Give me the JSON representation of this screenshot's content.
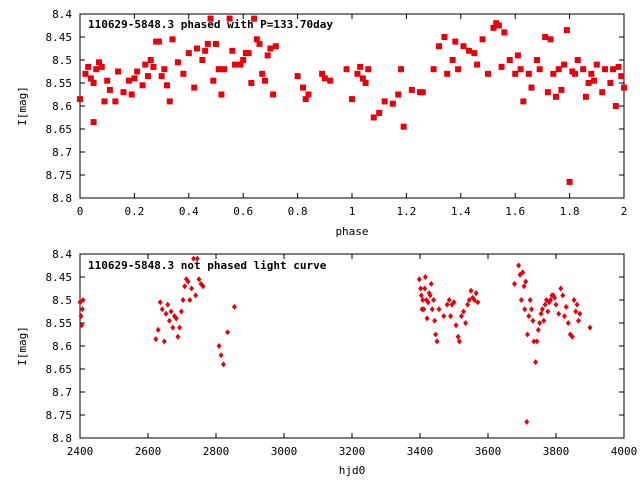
{
  "chart_data": [
    {
      "type": "scatter",
      "title": "110629-5848.3 phased with P=133.70day",
      "xlabel": "phase",
      "ylabel": "I[mag]",
      "xlim": [
        0,
        2
      ],
      "ylim": [
        8.8,
        8.4
      ],
      "y_inverted": true,
      "grid": false,
      "x_ticks": [
        "0",
        "0.2",
        "0.4",
        "0.6",
        "0.8",
        "1",
        "1.2",
        "1.4",
        "1.6",
        "1.8",
        "2"
      ],
      "x_tick_values": [
        0,
        0.2,
        0.4,
        0.6,
        0.8,
        1.0,
        1.2,
        1.4,
        1.6,
        1.8,
        2.0
      ],
      "y_ticks": [
        "8.4",
        "8.45",
        "8.5",
        "8.55",
        "8.6",
        "8.65",
        "8.7",
        "8.75",
        "8.8"
      ],
      "y_tick_values": [
        8.4,
        8.45,
        8.5,
        8.55,
        8.6,
        8.65,
        8.7,
        8.75,
        8.8
      ],
      "marker_color": "#e8000b",
      "marker": "square",
      "points": [
        [
          0.0,
          8.585
        ],
        [
          0.02,
          8.53
        ],
        [
          0.03,
          8.515
        ],
        [
          0.04,
          8.54
        ],
        [
          0.05,
          8.55
        ],
        [
          0.06,
          8.52
        ],
        [
          0.07,
          8.505
        ],
        [
          0.08,
          8.515
        ],
        [
          0.05,
          8.635
        ],
        [
          0.09,
          8.59
        ],
        [
          0.1,
          8.545
        ],
        [
          0.11,
          8.565
        ],
        [
          0.13,
          8.59
        ],
        [
          0.14,
          8.525
        ],
        [
          0.16,
          8.57
        ],
        [
          0.18,
          8.545
        ],
        [
          0.19,
          8.575
        ],
        [
          0.2,
          8.54
        ],
        [
          0.21,
          8.525
        ],
        [
          0.23,
          8.555
        ],
        [
          0.24,
          8.51
        ],
        [
          0.25,
          8.535
        ],
        [
          0.26,
          8.5
        ],
        [
          0.27,
          8.515
        ],
        [
          0.28,
          8.46
        ],
        [
          0.29,
          8.46
        ],
        [
          0.3,
          8.535
        ],
        [
          0.31,
          8.52
        ],
        [
          0.32,
          8.555
        ],
        [
          0.33,
          8.59
        ],
        [
          0.34,
          8.455
        ],
        [
          0.36,
          8.505
        ],
        [
          0.38,
          8.53
        ],
        [
          0.4,
          8.485
        ],
        [
          0.42,
          8.56
        ],
        [
          0.43,
          8.475
        ],
        [
          0.45,
          8.5
        ],
        [
          0.46,
          8.48
        ],
        [
          0.47,
          8.465
        ],
        [
          0.48,
          8.41
        ],
        [
          0.49,
          8.545
        ],
        [
          0.5,
          8.465
        ],
        [
          0.51,
          8.52
        ],
        [
          0.52,
          8.575
        ],
        [
          0.53,
          8.52
        ],
        [
          0.55,
          8.41
        ],
        [
          0.56,
          8.48
        ],
        [
          0.57,
          8.51
        ],
        [
          0.59,
          8.51
        ],
        [
          0.6,
          8.5
        ],
        [
          0.61,
          8.485
        ],
        [
          0.62,
          8.485
        ],
        [
          0.63,
          8.55
        ],
        [
          0.64,
          8.41
        ],
        [
          0.65,
          8.455
        ],
        [
          0.66,
          8.465
        ],
        [
          0.67,
          8.53
        ],
        [
          0.68,
          8.545
        ],
        [
          0.69,
          8.49
        ],
        [
          0.7,
          8.475
        ],
        [
          0.71,
          8.575
        ],
        [
          0.72,
          8.47
        ],
        [
          0.8,
          8.535
        ],
        [
          0.82,
          8.56
        ],
        [
          0.83,
          8.585
        ],
        [
          0.84,
          8.575
        ],
        [
          0.89,
          8.53
        ],
        [
          0.9,
          8.54
        ],
        [
          0.92,
          8.545
        ],
        [
          0.98,
          8.52
        ],
        [
          1.0,
          8.585
        ],
        [
          1.02,
          8.53
        ],
        [
          1.03,
          8.515
        ],
        [
          1.04,
          8.54
        ],
        [
          1.05,
          8.55
        ],
        [
          1.06,
          8.52
        ],
        [
          1.08,
          8.625
        ],
        [
          1.1,
          8.615
        ],
        [
          1.12,
          8.59
        ],
        [
          1.15,
          8.595
        ],
        [
          1.17,
          8.575
        ],
        [
          1.18,
          8.52
        ],
        [
          1.19,
          8.645
        ],
        [
          1.22,
          8.565
        ],
        [
          1.25,
          8.57
        ],
        [
          1.26,
          8.57
        ],
        [
          1.3,
          8.52
        ],
        [
          1.32,
          8.47
        ],
        [
          1.34,
          8.45
        ],
        [
          1.35,
          8.53
        ],
        [
          1.37,
          8.5
        ],
        [
          1.38,
          8.46
        ],
        [
          1.39,
          8.52
        ],
        [
          1.41,
          8.47
        ],
        [
          1.43,
          8.48
        ],
        [
          1.45,
          8.485
        ],
        [
          1.46,
          8.51
        ],
        [
          1.48,
          8.455
        ],
        [
          1.5,
          8.53
        ],
        [
          1.52,
          8.43
        ],
        [
          1.53,
          8.42
        ],
        [
          1.54,
          8.425
        ],
        [
          1.55,
          8.515
        ],
        [
          1.56,
          8.44
        ],
        [
          1.58,
          8.5
        ],
        [
          1.6,
          8.53
        ],
        [
          1.61,
          8.49
        ],
        [
          1.62,
          8.52
        ],
        [
          1.63,
          8.59
        ],
        [
          1.65,
          8.53
        ],
        [
          1.66,
          8.56
        ],
        [
          1.68,
          8.5
        ],
        [
          1.69,
          8.52
        ],
        [
          1.71,
          8.45
        ],
        [
          1.72,
          8.57
        ],
        [
          1.73,
          8.455
        ],
        [
          1.74,
          8.53
        ],
        [
          1.75,
          8.58
        ],
        [
          1.76,
          8.52
        ],
        [
          1.77,
          8.565
        ],
        [
          1.78,
          8.51
        ],
        [
          1.79,
          8.435
        ],
        [
          1.8,
          8.765
        ],
        [
          1.81,
          8.525
        ],
        [
          1.82,
          8.53
        ],
        [
          1.83,
          8.5
        ],
        [
          1.85,
          8.52
        ],
        [
          1.86,
          8.58
        ],
        [
          1.87,
          8.55
        ],
        [
          1.88,
          8.53
        ],
        [
          1.89,
          8.545
        ],
        [
          1.9,
          8.51
        ],
        [
          1.92,
          8.57
        ],
        [
          1.93,
          8.52
        ],
        [
          1.95,
          8.55
        ],
        [
          1.96,
          8.52
        ],
        [
          1.97,
          8.6
        ],
        [
          1.98,
          8.515
        ],
        [
          1.99,
          8.535
        ],
        [
          2.0,
          8.56
        ]
      ]
    },
    {
      "type": "scatter",
      "title": "110629-5848.3 not phased light curve",
      "xlabel": "hjd0",
      "ylabel": "I[mag]",
      "xlim": [
        2400,
        4000
      ],
      "ylim": [
        8.8,
        8.4
      ],
      "y_inverted": true,
      "grid": false,
      "x_ticks": [
        "2400",
        "2600",
        "2800",
        "3000",
        "3200",
        "3400",
        "3600",
        "3800",
        "4000"
      ],
      "x_tick_values": [
        2400,
        2600,
        2800,
        3000,
        3200,
        3400,
        3600,
        3800,
        4000
      ],
      "y_ticks": [
        "8.4",
        "8.45",
        "8.5",
        "8.55",
        "8.6",
        "8.65",
        "8.7",
        "8.75",
        "8.8"
      ],
      "y_tick_values": [
        8.4,
        8.45,
        8.5,
        8.55,
        8.6,
        8.65,
        8.7,
        8.75,
        8.8
      ],
      "marker_color": "#e8000b",
      "marker": "diamond",
      "points": [
        [
          2400,
          8.505
        ],
        [
          2403,
          8.535
        ],
        [
          2405,
          8.555
        ],
        [
          2407,
          8.52
        ],
        [
          2409,
          8.5
        ],
        [
          2623,
          8.585
        ],
        [
          2630,
          8.565
        ],
        [
          2636,
          8.505
        ],
        [
          2642,
          8.52
        ],
        [
          2648,
          8.59
        ],
        [
          2653,
          8.53
        ],
        [
          2658,
          8.51
        ],
        [
          2663,
          8.545
        ],
        [
          2668,
          8.525
        ],
        [
          2673,
          8.56
        ],
        [
          2678,
          8.535
        ],
        [
          2683,
          8.54
        ],
        [
          2688,
          8.58
        ],
        [
          2693,
          8.56
        ],
        [
          2698,
          8.525
        ],
        [
          2703,
          8.5
        ],
        [
          2708,
          8.47
        ],
        [
          2713,
          8.455
        ],
        [
          2718,
          8.46
        ],
        [
          2723,
          8.5
        ],
        [
          2728,
          8.475
        ],
        [
          2734,
          8.41
        ],
        [
          2740,
          8.49
        ],
        [
          2745,
          8.41
        ],
        [
          2750,
          8.455
        ],
        [
          2756,
          8.465
        ],
        [
          2762,
          8.47
        ],
        [
          2809,
          8.6
        ],
        [
          2815,
          8.62
        ],
        [
          2822,
          8.64
        ],
        [
          2834,
          8.57
        ],
        [
          2854,
          8.515
        ],
        [
          3398,
          8.455
        ],
        [
          3402,
          8.475
        ],
        [
          3404,
          8.49
        ],
        [
          3406,
          8.52
        ],
        [
          3408,
          8.5
        ],
        [
          3411,
          8.52
        ],
        [
          3414,
          8.475
        ],
        [
          3416,
          8.45
        ],
        [
          3419,
          8.5
        ],
        [
          3421,
          8.54
        ],
        [
          3424,
          8.505
        ],
        [
          3427,
          8.485
        ],
        [
          3430,
          8.49
        ],
        [
          3433,
          8.465
        ],
        [
          3436,
          8.52
        ],
        [
          3440,
          8.5
        ],
        [
          3443,
          8.545
        ],
        [
          3446,
          8.575
        ],
        [
          3450,
          8.59
        ],
        [
          3456,
          8.52
        ],
        [
          3470,
          8.535
        ],
        [
          3480,
          8.51
        ],
        [
          3486,
          8.5
        ],
        [
          3490,
          8.535
        ],
        [
          3494,
          8.51
        ],
        [
          3500,
          8.505
        ],
        [
          3506,
          8.555
        ],
        [
          3512,
          8.58
        ],
        [
          3516,
          8.59
        ],
        [
          3522,
          8.535
        ],
        [
          3528,
          8.525
        ],
        [
          3534,
          8.55
        ],
        [
          3540,
          8.51
        ],
        [
          3545,
          8.5
        ],
        [
          3550,
          8.48
        ],
        [
          3555,
          8.495
        ],
        [
          3560,
          8.5
        ],
        [
          3565,
          8.485
        ],
        [
          3570,
          8.505
        ],
        [
          3678,
          8.465
        ],
        [
          3690,
          8.425
        ],
        [
          3694,
          8.445
        ],
        [
          3698,
          8.5
        ],
        [
          3702,
          8.44
        ],
        [
          3706,
          8.47
        ],
        [
          3708,
          8.52
        ],
        [
          3711,
          8.46
        ],
        [
          3714,
          8.765
        ],
        [
          3716,
          8.575
        ],
        [
          3720,
          8.535
        ],
        [
          3724,
          8.5
        ],
        [
          3728,
          8.52
        ],
        [
          3732,
          8.545
        ],
        [
          3735,
          8.59
        ],
        [
          3740,
          8.635
        ],
        [
          3744,
          8.59
        ],
        [
          3748,
          8.565
        ],
        [
          3752,
          8.55
        ],
        [
          3756,
          8.53
        ],
        [
          3760,
          8.52
        ],
        [
          3764,
          8.545
        ],
        [
          3768,
          8.51
        ],
        [
          3772,
          8.5
        ],
        [
          3776,
          8.525
        ],
        [
          3780,
          8.505
        ],
        [
          3784,
          8.5
        ],
        [
          3788,
          8.49
        ],
        [
          3792,
          8.49
        ],
        [
          3796,
          8.495
        ],
        [
          3800,
          8.51
        ],
        [
          3808,
          8.53
        ],
        [
          3814,
          8.475
        ],
        [
          3820,
          8.49
        ],
        [
          3825,
          8.535
        ],
        [
          3830,
          8.515
        ],
        [
          3836,
          8.55
        ],
        [
          3842,
          8.575
        ],
        [
          3848,
          8.58
        ],
        [
          3853,
          8.5
        ],
        [
          3858,
          8.525
        ],
        [
          3862,
          8.51
        ],
        [
          3866,
          8.545
        ],
        [
          3870,
          8.53
        ],
        [
          3900,
          8.56
        ]
      ]
    }
  ]
}
